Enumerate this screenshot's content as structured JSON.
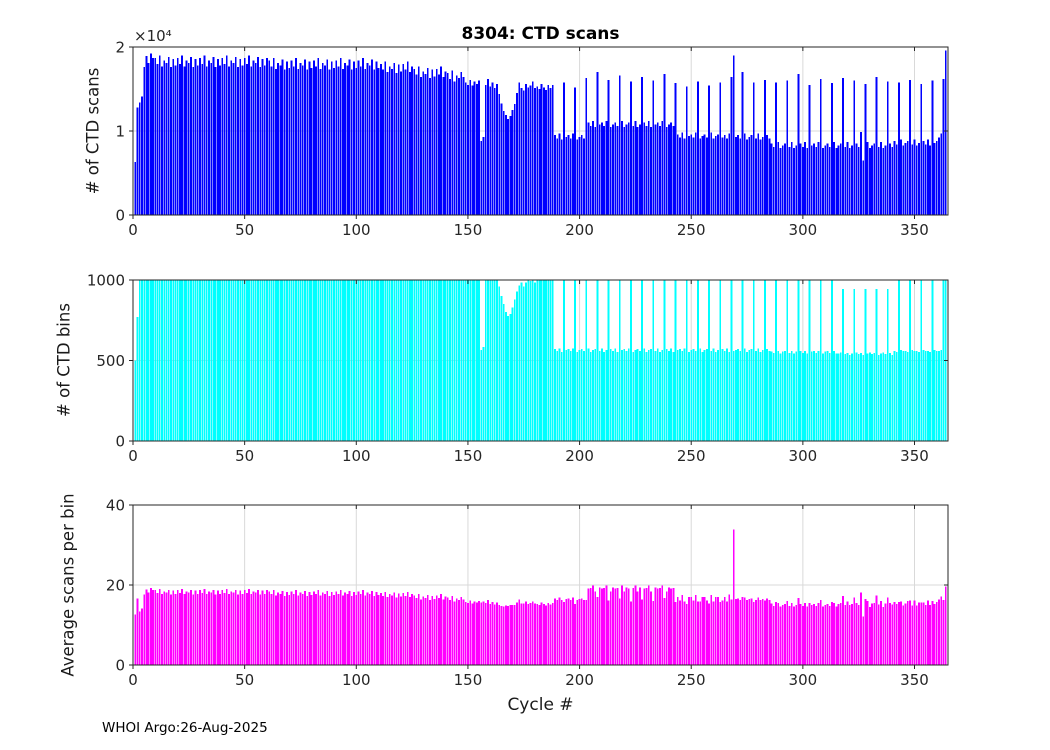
{
  "footer_text": "WHOI Argo:26-Aug-2025",
  "colors": {
    "axis": "#262626",
    "grid": "#d9d9d9",
    "scans_bar": "#0000FF",
    "bins_bar": "#00FFFF",
    "avg_bar": "#FF00FF"
  },
  "chart_data": [
    {
      "type": "bar",
      "title": "8304: CTD scans",
      "ylabel": "# of CTD scans",
      "xlabel": "",
      "y_exponent_label": "×10⁴",
      "ylim": [
        0,
        20000
      ],
      "yticks": [
        0,
        10000,
        20000
      ],
      "ytick_labels": [
        "0",
        "1",
        "2"
      ],
      "xlim": [
        0,
        365
      ],
      "xticks": [
        0,
        50,
        100,
        150,
        200,
        250,
        300,
        350
      ],
      "grid": true,
      "legend": "none",
      "bar_color": "#0000FF",
      "x_start_cycle": 1,
      "values": [
        6300,
        12800,
        13400,
        14100,
        17600,
        18900,
        18100,
        19200,
        18700,
        18700,
        18000,
        19000,
        17700,
        18400,
        18100,
        18800,
        17600,
        18600,
        17800,
        18700,
        18000,
        19000,
        17700,
        18400,
        18100,
        18800,
        17600,
        18600,
        17800,
        18700,
        18000,
        19000,
        17700,
        18400,
        18100,
        18800,
        17600,
        18600,
        17800,
        18700,
        18000,
        19000,
        17700,
        18400,
        18100,
        18800,
        17600,
        18600,
        17800,
        18700,
        18000,
        19000,
        17700,
        18400,
        18100,
        18800,
        17600,
        18600,
        17800,
        18700,
        18400,
        17700,
        18700,
        17400,
        18100,
        17800,
        18500,
        17300,
        18300,
        17500,
        18400,
        17700,
        18700,
        17400,
        18100,
        17800,
        18500,
        17300,
        18300,
        17500,
        18400,
        17700,
        18700,
        17400,
        18100,
        17800,
        18500,
        17300,
        18300,
        17500,
        18400,
        17700,
        18700,
        17400,
        18100,
        17800,
        18500,
        17300,
        18300,
        17500,
        18400,
        17700,
        18700,
        17400,
        18100,
        17800,
        18500,
        17300,
        18300,
        17500,
        18000,
        17300,
        18300,
        17000,
        17700,
        17400,
        18100,
        16900,
        17900,
        17100,
        18000,
        17300,
        18300,
        17000,
        17700,
        17400,
        16700,
        17700,
        16400,
        17100,
        16800,
        17500,
        16300,
        17300,
        16500,
        17400,
        16700,
        17700,
        16400,
        17100,
        16900,
        16200,
        17200,
        15900,
        16600,
        16300,
        17000,
        16400,
        15800,
        15500,
        16100,
        15400,
        15900,
        15600,
        16000,
        8800,
        9300,
        15500,
        16200,
        15300,
        15800,
        15100,
        15600,
        14400,
        13300,
        12400,
        11900,
        11400,
        11800,
        12500,
        13200,
        14500,
        15800,
        15100,
        14800,
        15600,
        15200,
        15400,
        15900,
        15100,
        15300,
        15000,
        15600,
        15200,
        14900,
        15500,
        15100,
        15500,
        9500,
        9100,
        9700,
        9000,
        15800,
        9300,
        9500,
        9100,
        9700,
        15200,
        9000,
        9300,
        9500,
        9100,
        16300,
        11000,
        10600,
        11200,
        10500,
        17000,
        10800,
        11000,
        10600,
        11200,
        16100,
        10500,
        10800,
        11000,
        10600,
        16600,
        11200,
        10500,
        10800,
        11000,
        15900,
        10600,
        11200,
        10500,
        10800,
        16400,
        11000,
        10600,
        11200,
        10500,
        16000,
        10800,
        11000,
        10600,
        11200,
        16800,
        10500,
        10800,
        11000,
        10600,
        15700,
        9600,
        9200,
        9800,
        9100,
        15300,
        9400,
        9600,
        9200,
        9800,
        15900,
        9100,
        9400,
        9600,
        9200,
        15400,
        9800,
        9100,
        9400,
        9600,
        15800,
        9200,
        9500,
        9100,
        9700,
        16400,
        19000,
        9300,
        9500,
        9100,
        17000,
        9700,
        9000,
        9300,
        9500,
        15800,
        9100,
        9700,
        9000,
        9300,
        16100,
        9500,
        9100,
        8500,
        8100,
        15800,
        8700,
        8000,
        8300,
        8500,
        16000,
        8100,
        8700,
        8000,
        8300,
        16800,
        8500,
        8100,
        8700,
        8000,
        15500,
        8300,
        8500,
        8100,
        8700,
        16200,
        8000,
        8300,
        8500,
        8100,
        15700,
        8700,
        8000,
        8300,
        8500,
        16300,
        8100,
        8700,
        8000,
        8300,
        16000,
        8500,
        8100,
        9900,
        6500,
        15600,
        8700,
        8000,
        8300,
        8500,
        16400,
        8100,
        8700,
        8000,
        8300,
        15900,
        8500,
        8100,
        8800,
        8400,
        15800,
        9000,
        8300,
        8600,
        8800,
        16100,
        8400,
        9000,
        8300,
        8600,
        15600,
        8800,
        8400,
        9000,
        8300,
        16000,
        8600,
        8800,
        9200,
        9700,
        16200,
        19600
      ]
    },
    {
      "type": "bar",
      "title": "",
      "ylabel": "# of CTD bins",
      "xlabel": "",
      "ylim": [
        0,
        1000
      ],
      "yticks": [
        0,
        500,
        1000
      ],
      "ytick_labels": [
        "0",
        "500",
        "1000"
      ],
      "xlim": [
        0,
        365
      ],
      "xticks": [
        0,
        50,
        100,
        150,
        200,
        250,
        300,
        350
      ],
      "grid": true,
      "legend": "none",
      "bar_color": "#00FFFF",
      "x_start_cycle": 1,
      "values": [
        500,
        770,
        1000,
        1000,
        1000,
        1000,
        1000,
        1000,
        1000,
        1000,
        1000,
        1000,
        1000,
        1000,
        1000,
        1000,
        1000,
        1000,
        1000,
        1000,
        1000,
        1000,
        1000,
        1000,
        1000,
        1000,
        1000,
        1000,
        1000,
        1000,
        1000,
        1000,
        1000,
        1000,
        1000,
        1000,
        1000,
        1000,
        1000,
        1000,
        1000,
        1000,
        1000,
        1000,
        1000,
        1000,
        1000,
        1000,
        1000,
        1000,
        1000,
        1000,
        1000,
        1000,
        1000,
        1000,
        1000,
        1000,
        1000,
        1000,
        1000,
        1000,
        1000,
        1000,
        1000,
        1000,
        1000,
        1000,
        1000,
        1000,
        1000,
        1000,
        1000,
        1000,
        1000,
        1000,
        1000,
        1000,
        1000,
        1000,
        1000,
        1000,
        1000,
        1000,
        1000,
        1000,
        1000,
        1000,
        1000,
        1000,
        1000,
        1000,
        1000,
        1000,
        1000,
        1000,
        1000,
        1000,
        1000,
        1000,
        1000,
        1000,
        1000,
        1000,
        1000,
        1000,
        1000,
        1000,
        1000,
        1000,
        1000,
        1000,
        1000,
        1000,
        1000,
        1000,
        1000,
        1000,
        1000,
        1000,
        1000,
        1000,
        1000,
        1000,
        1000,
        1000,
        1000,
        1000,
        1000,
        1000,
        1000,
        1000,
        1000,
        1000,
        1000,
        1000,
        1000,
        1000,
        1000,
        1000,
        1000,
        1000,
        1000,
        1000,
        1000,
        1000,
        1000,
        1000,
        1000,
        1000,
        1000,
        1000,
        1000,
        1000,
        1000,
        565,
        585,
        1000,
        1000,
        1000,
        1000,
        1000,
        1000,
        960,
        900,
        850,
        800,
        775,
        790,
        830,
        880,
        930,
        965,
        985,
        960,
        985,
        1000,
        995,
        1000,
        985,
        1000,
        1000,
        1000,
        1000,
        1000,
        1000,
        1000,
        1000,
        570,
        558,
        575,
        552,
        1000,
        565,
        570,
        558,
        575,
        1000,
        552,
        565,
        570,
        558,
        1000,
        575,
        552,
        565,
        570,
        1000,
        558,
        575,
        552,
        565,
        1000,
        570,
        558,
        575,
        552,
        1000,
        565,
        570,
        558,
        575,
        1000,
        552,
        565,
        570,
        558,
        1000,
        575,
        552,
        565,
        570,
        1000,
        558,
        575,
        552,
        565,
        1000,
        570,
        558,
        575,
        552,
        1000,
        565,
        570,
        558,
        575,
        1000,
        552,
        565,
        570,
        558,
        1000,
        575,
        552,
        565,
        570,
        1000,
        558,
        575,
        552,
        565,
        1000,
        570,
        558,
        575,
        552,
        1000,
        560,
        565,
        570,
        558,
        1000,
        575,
        552,
        565,
        570,
        1000,
        558,
        575,
        552,
        565,
        1000,
        570,
        558,
        555,
        548,
        1000,
        560,
        545,
        555,
        558,
        1000,
        548,
        560,
        545,
        555,
        1000,
        558,
        548,
        560,
        545,
        1000,
        555,
        558,
        548,
        560,
        1000,
        545,
        555,
        558,
        548,
        1000,
        560,
        545,
        545,
        550,
        945,
        540,
        548,
        535,
        545,
        945,
        550,
        540,
        548,
        535,
        945,
        545,
        550,
        540,
        548,
        945,
        535,
        545,
        550,
        540,
        945,
        548,
        535,
        560,
        552,
        1000,
        565,
        558,
        560,
        552,
        1000,
        565,
        558,
        560,
        552,
        1000,
        565,
        558,
        560,
        552,
        1000,
        565,
        558,
        560,
        565,
        1000,
        1000
      ]
    },
    {
      "type": "bar",
      "title": "",
      "ylabel": "Average scans per bin",
      "xlabel": "Cycle #",
      "ylim": [
        0,
        40
      ],
      "yticks": [
        0,
        20,
        40
      ],
      "ytick_labels": [
        "0",
        "20",
        "40"
      ],
      "xlim": [
        0,
        365
      ],
      "xticks": [
        0,
        50,
        100,
        150,
        200,
        250,
        300,
        350
      ],
      "grid": true,
      "legend": "none",
      "bar_color": "#FF00FF",
      "x_start_cycle": 1,
      "values_derived_from": [
        "chart_data[0].values",
        "chart_data[1].values"
      ],
      "operation": "elementwise_divide",
      "typical_range": [
        12,
        20
      ],
      "peak_annotation": {
        "cycle": 269,
        "value": 34
      }
    }
  ]
}
